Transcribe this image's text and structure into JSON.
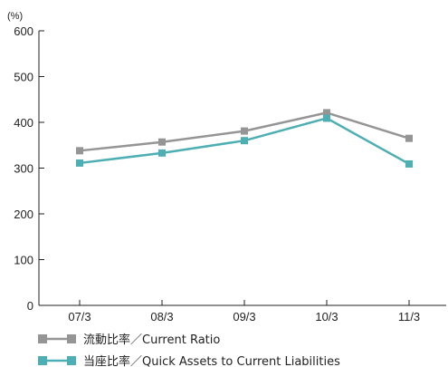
{
  "chart_data": {
    "type": "line",
    "y_unit": "(%)",
    "categories": [
      "07/3",
      "08/3",
      "09/3",
      "10/3",
      "11/3"
    ],
    "ylim": [
      0,
      600
    ],
    "yticks": [
      0,
      100,
      200,
      300,
      400,
      500,
      600
    ],
    "grid": false,
    "legend_position": "bottom-left",
    "series": [
      {
        "name": "流動比率／Current Ratio",
        "values": [
          338,
          357,
          381,
          421,
          365
        ],
        "color": "#959595"
      },
      {
        "name": "当座比率／Quick Assets to Current Liabilities",
        "values": [
          311,
          333,
          360,
          409,
          309
        ],
        "color": "#4dafb3"
      }
    ]
  }
}
